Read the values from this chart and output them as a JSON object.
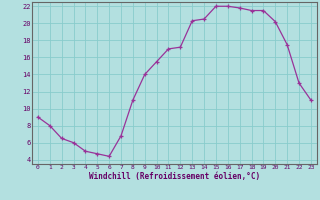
{
  "x": [
    0,
    1,
    2,
    3,
    4,
    5,
    6,
    7,
    8,
    9,
    10,
    11,
    12,
    13,
    14,
    15,
    16,
    17,
    18,
    19,
    20,
    21,
    22,
    23
  ],
  "y": [
    9,
    8,
    6.5,
    6,
    5,
    4.7,
    4.4,
    6.8,
    11,
    14,
    15.5,
    17,
    17.2,
    20.3,
    20.5,
    22,
    22,
    21.8,
    21.5,
    21.5,
    20.2,
    17.5,
    13,
    11
  ],
  "line_color": "#993399",
  "marker": "+",
  "bg_color": "#b3e0e0",
  "grid_color": "#88cccc",
  "axis_color": "#660066",
  "spine_color": "#666666",
  "xlabel": "Windchill (Refroidissement éolien,°C)",
  "ylabel": "",
  "title": "",
  "xlim": [
    -0.5,
    23.5
  ],
  "ylim": [
    3.5,
    22.5
  ],
  "yticks": [
    4,
    6,
    8,
    10,
    12,
    14,
    16,
    18,
    20,
    22
  ],
  "xticks": [
    0,
    1,
    2,
    3,
    4,
    5,
    6,
    7,
    8,
    9,
    10,
    11,
    12,
    13,
    14,
    15,
    16,
    17,
    18,
    19,
    20,
    21,
    22,
    23
  ]
}
